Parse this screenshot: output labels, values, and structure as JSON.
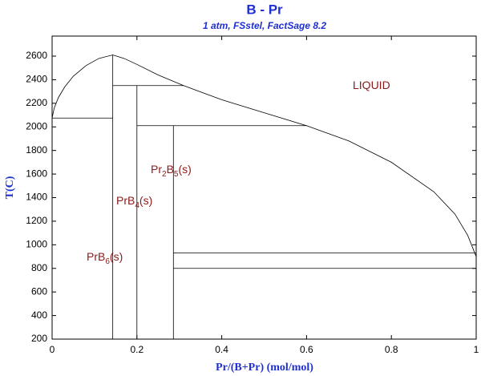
{
  "chart_data": {
    "type": "line",
    "title": "B - Pr",
    "subtitle": "1 atm, FSstel, FactSage 8.2",
    "xlabel": "Pr/(B+Pr) (mol/mol)",
    "ylabel": "T(C)",
    "xlim": [
      0,
      1
    ],
    "ylim": [
      200,
      2770
    ],
    "xticks": [
      0,
      0.2,
      0.4,
      0.6,
      0.8,
      1
    ],
    "yticks": [
      200,
      400,
      600,
      800,
      1000,
      1200,
      1400,
      1600,
      1800,
      2000,
      2200,
      2400,
      2600
    ],
    "color": "#000000",
    "series": [
      {
        "x": [
          0,
          0.005,
          0.015,
          0.03,
          0.05,
          0.08,
          0.11,
          0.143,
          0.17,
          0.2,
          0.25,
          0.31,
          0.4,
          0.5,
          0.6,
          0.7,
          0.8,
          0.9,
          0.95,
          0.98,
          0.99,
          1.0
        ],
        "values": [
          2075,
          2160,
          2250,
          2340,
          2430,
          2520,
          2580,
          2610,
          2580,
          2530,
          2440,
          2350,
          2230,
          2120,
          2010,
          1880,
          1700,
          1450,
          1260,
          1080,
          990,
          900
        ]
      },
      {
        "x": [
          0,
          0.143
        ],
        "values": [
          2075,
          2075
        ]
      },
      {
        "x": [
          0.143,
          0.31
        ],
        "values": [
          2350,
          2350
        ]
      },
      {
        "x": [
          0.2,
          0.6
        ],
        "values": [
          2010,
          2010
        ]
      },
      {
        "x": [
          0.286,
          1
        ],
        "values": [
          930,
          930
        ]
      },
      {
        "x": [
          0.286,
          1
        ],
        "values": [
          800,
          800
        ]
      },
      {
        "x": [
          0.143,
          0.143
        ],
        "values": [
          200,
          2610
        ]
      },
      {
        "x": [
          0.2,
          0.2
        ],
        "values": [
          200,
          2350
        ]
      },
      {
        "x": [
          0.286,
          0.286
        ],
        "values": [
          200,
          2010
        ]
      }
    ],
    "annotations": [
      {
        "parts": [
          {
            "t": "LIQUID"
          }
        ]
      },
      {
        "parts": [
          {
            "t": "PrB"
          },
          {
            "t": "6",
            "sub": true
          },
          {
            "t": "(s)"
          }
        ]
      },
      {
        "parts": [
          {
            "t": "PrB"
          },
          {
            "t": "4",
            "sub": true
          },
          {
            "t": "(s)"
          }
        ]
      },
      {
        "parts": [
          {
            "t": "Pr"
          },
          {
            "t": "2",
            "sub": true
          },
          {
            "t": "B"
          },
          {
            "t": "5",
            "sub": true
          },
          {
            "t": "(s)"
          }
        ]
      }
    ]
  }
}
